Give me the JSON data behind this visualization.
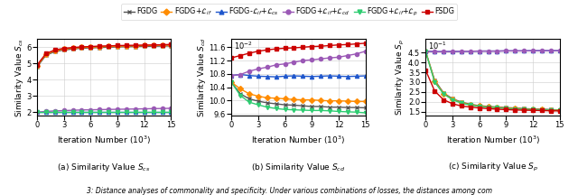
{
  "legend_labels": [
    "FGDG",
    "FGDG+$\\mathcal{L}_{if}$",
    "FGDG-$\\mathcal{L}_{if}$+$\\mathcal{L}_{cs}$",
    "FGDG+$\\mathcal{L}_{if}$+$\\mathcal{L}_{cd}$",
    "FGDG+$\\mathcal{L}_{if}$+$\\mathcal{L}_{p}$",
    "FSDG"
  ],
  "colors": [
    "#555555",
    "#FF8C00",
    "#1E56CC",
    "#9B59B6",
    "#2ECC71",
    "#CC0000"
  ],
  "markers": [
    "x",
    "D",
    "^",
    "o",
    "v",
    "s"
  ],
  "n_points": 16,
  "x_max": 15,
  "subplot_a": {
    "title": "(a) Similarity Value $S_{cs}$",
    "ylabel": "Similarity Value $S_{cs}$",
    "xlabel": "Iteration Number ($10^3$)",
    "ylim": [
      1.8,
      6.5
    ],
    "yticks": [
      2.0,
      3.0,
      4.0,
      5.0,
      6.0
    ],
    "series": {
      "FGDG": [
        4.78,
        5.5,
        5.72,
        5.82,
        5.88,
        5.93,
        5.95,
        5.97,
        5.99,
        6.01,
        6.02,
        6.03,
        6.04,
        6.05,
        6.06,
        6.07
      ],
      "FGDG_lif": [
        4.85,
        5.55,
        5.78,
        5.88,
        5.94,
        5.98,
        6.0,
        6.02,
        6.04,
        6.06,
        6.07,
        6.08,
        6.09,
        6.1,
        6.12,
        6.13
      ],
      "FGDG_lcs": [
        2.0,
        2.0,
        2.0,
        2.0,
        2.0,
        2.0,
        2.0,
        2.0,
        2.0,
        2.0,
        2.0,
        2.0,
        2.0,
        2.0,
        2.0,
        2.0
      ],
      "FGDG_lcd": [
        2.0,
        2.05,
        2.08,
        2.1,
        2.12,
        2.14,
        2.15,
        2.16,
        2.17,
        2.18,
        2.19,
        2.2,
        2.21,
        2.22,
        2.23,
        2.24
      ],
      "FGDG_lp": [
        2.0,
        2.0,
        2.0,
        2.0,
        2.0,
        2.0,
        2.0,
        2.0,
        2.0,
        2.0,
        2.0,
        2.0,
        2.0,
        2.0,
        2.0,
        2.0
      ],
      "FSDG": [
        4.9,
        5.6,
        5.82,
        5.92,
        5.97,
        6.01,
        6.03,
        6.06,
        6.07,
        6.09,
        6.1,
        6.11,
        6.12,
        6.13,
        6.14,
        6.16
      ]
    }
  },
  "subplot_b": {
    "title": "(b) Similarity Value $S_{cd}$",
    "ylabel": "Similarity Value $S_{cd}$",
    "xlabel": "Iteration Number ($10^3$)",
    "ylim": [
      9.55,
      11.85
    ],
    "yticks": [
      9.6,
      10.0,
      10.4,
      10.8,
      11.2,
      11.6
    ],
    "exp_label": "$10^{-2}$",
    "series": {
      "FGDG": [
        10.55,
        10.2,
        10.05,
        9.98,
        9.93,
        9.9,
        9.87,
        9.86,
        9.84,
        9.82,
        9.82,
        9.8,
        9.8,
        9.79,
        9.79,
        9.78
      ],
      "FGDG_lif": [
        10.55,
        10.35,
        10.2,
        10.13,
        10.08,
        10.07,
        10.05,
        10.03,
        10.02,
        10.02,
        10.0,
        9.99,
        9.99,
        9.98,
        9.97,
        9.97
      ],
      "FGDG_lcs": [
        10.75,
        10.78,
        10.75,
        10.73,
        10.72,
        10.71,
        10.73,
        10.74,
        10.73,
        10.72,
        10.73,
        10.74,
        10.73,
        10.72,
        10.73,
        10.74
      ],
      "FGDG_lcd": [
        10.75,
        10.78,
        10.88,
        10.95,
        11.0,
        11.07,
        11.1,
        11.15,
        11.2,
        11.22,
        11.25,
        11.28,
        11.3,
        11.35,
        11.4,
        11.48
      ],
      "FGDG_lp": [
        10.55,
        10.15,
        9.95,
        9.87,
        9.8,
        9.76,
        9.73,
        9.72,
        9.71,
        9.7,
        9.7,
        9.69,
        9.67,
        9.66,
        9.65,
        9.63
      ],
      "FSDG": [
        11.28,
        11.35,
        11.42,
        11.48,
        11.52,
        11.55,
        11.57,
        11.58,
        11.6,
        11.62,
        11.63,
        11.65,
        11.67,
        11.68,
        11.7,
        11.72
      ]
    }
  },
  "subplot_c": {
    "title": "(c) Similarity Value $S_p$",
    "ylabel": "Similarity Value $S_p$",
    "xlabel": "Iteration Number ($10^3$)",
    "ylim": [
      1.3,
      5.2
    ],
    "yticks": [
      1.5,
      2.0,
      2.5,
      3.0,
      3.5,
      4.0,
      4.5
    ],
    "exp_label": "$10^{-1}$",
    "series": {
      "FGDG": [
        4.55,
        3.1,
        2.45,
        2.15,
        1.98,
        1.87,
        1.8,
        1.76,
        1.73,
        1.7,
        1.68,
        1.65,
        1.63,
        1.62,
        1.6,
        1.58
      ],
      "FGDG_lif": [
        4.55,
        3.05,
        2.42,
        2.12,
        1.95,
        1.85,
        1.78,
        1.74,
        1.71,
        1.68,
        1.66,
        1.63,
        1.61,
        1.6,
        1.58,
        1.57
      ],
      "FGDG_lcs": [
        4.58,
        4.55,
        4.55,
        4.56,
        4.57,
        4.57,
        4.58,
        4.58,
        4.58,
        4.59,
        4.59,
        4.59,
        4.6,
        4.6,
        4.6,
        4.6
      ],
      "FGDG_lcd": [
        4.58,
        4.55,
        4.55,
        4.56,
        4.57,
        4.57,
        4.58,
        4.58,
        4.58,
        4.59,
        4.59,
        4.59,
        4.6,
        4.6,
        4.6,
        4.6
      ],
      "FGDG_lp": [
        4.55,
        3.0,
        2.4,
        2.1,
        1.93,
        1.83,
        1.76,
        1.72,
        1.69,
        1.66,
        1.63,
        1.62,
        1.6,
        1.59,
        1.57,
        1.55
      ],
      "FSDG": [
        3.6,
        2.55,
        2.1,
        1.9,
        1.78,
        1.73,
        1.68,
        1.65,
        1.62,
        1.6,
        1.58,
        1.57,
        1.56,
        1.55,
        1.54,
        1.53
      ]
    }
  },
  "figsize": [
    6.4,
    2.16
  ],
  "dpi": 100,
  "caption": "3: Distance analyses of commonality and specificity. Under various combinations of losses, the distances among com"
}
